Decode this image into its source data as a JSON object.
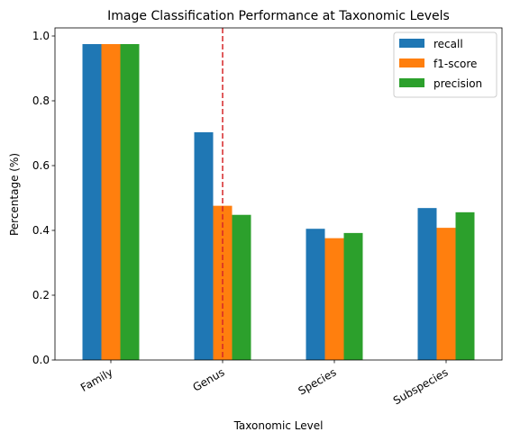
{
  "chart_data": {
    "type": "bar",
    "title": "Image Classification Performance at Taxonomic Levels",
    "xlabel": "Taxonomic Level",
    "ylabel": "Percentage (%)",
    "categories": [
      "Family",
      "Genus",
      "Species",
      "Subspecies"
    ],
    "series": [
      {
        "name": "recall",
        "color": "#1f77b4",
        "values": [
          0.975,
          0.703,
          0.405,
          0.469
        ]
      },
      {
        "name": "f1-score",
        "color": "#ff7f0e",
        "values": [
          0.975,
          0.476,
          0.376,
          0.408
        ]
      },
      {
        "name": "precision",
        "color": "#2ca02c",
        "values": [
          0.975,
          0.448,
          0.392,
          0.456
        ]
      }
    ],
    "ylim": [
      0,
      1.025
    ],
    "yticks": [
      "0.0",
      "0.2",
      "0.4",
      "0.6",
      "0.8",
      "1.0"
    ],
    "grid": false,
    "legend_position": "top-right",
    "x_tick_rotation": 30,
    "reference_line": {
      "style": "dashed",
      "color": "#d62728",
      "x_category": "Genus"
    }
  }
}
